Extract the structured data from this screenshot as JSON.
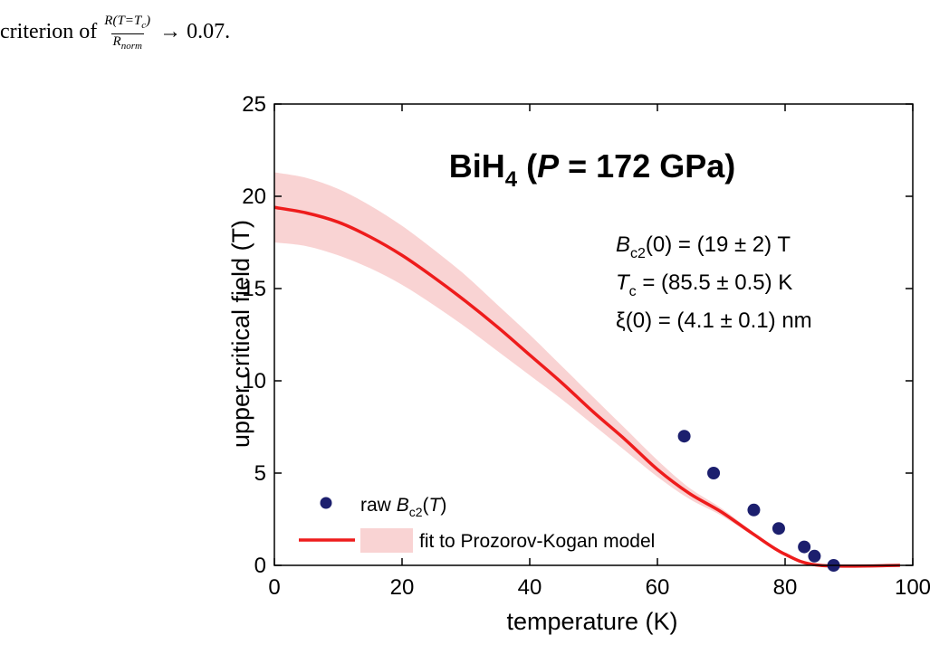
{
  "caption": {
    "prefix": "criterion of",
    "numerator": "R(T=T",
    "numerator_sub": "c",
    "numerator_end": ")",
    "denominator": "R",
    "denominator_sub": "norm",
    "suffix": "→ 0.07."
  },
  "chart_data": {
    "type": "scatter",
    "title": "BiH4 (P = 172 GPa)",
    "xlabel": "temperature (K)",
    "ylabel": "upper critical field (T)",
    "xlim": [
      0,
      100
    ],
    "ylim": [
      0,
      25
    ],
    "x_ticks": [
      0,
      20,
      40,
      60,
      80,
      100
    ],
    "y_ticks": [
      0,
      5,
      10,
      15,
      20,
      25
    ],
    "grid": false,
    "legend_position": "bottom-left",
    "annotations": [
      {
        "main": "B",
        "sub": "c2",
        "rest": "(0) = (19 ± 2) T"
      },
      {
        "main": "T",
        "sub": "c",
        "rest": " = (85.5 ± 0.5) K"
      },
      {
        "main": "ξ(0) = (4.1 ± 0.1) nm",
        "sub": "",
        "rest": ""
      }
    ],
    "series": [
      {
        "name": "raw Bc2(T)",
        "kind": "scatter",
        "color": "#1c1f6e",
        "x": [
          64.2,
          68.8,
          75.1,
          79.0,
          83.0,
          84.6,
          87.6
        ],
        "y": [
          7.0,
          5.0,
          3.0,
          2.0,
          1.0,
          0.5,
          0.0
        ]
      },
      {
        "name": "fit to Prozorov-Kogan model",
        "kind": "line",
        "color": "#ee1c1c",
        "band_color": "#f9d3d3",
        "x": [
          0,
          5,
          10,
          15,
          20,
          25,
          30,
          35,
          40,
          45,
          50,
          55,
          60,
          65,
          70,
          75,
          80,
          85.5,
          98
        ],
        "y": [
          19.4,
          19.1,
          18.6,
          17.8,
          16.8,
          15.6,
          14.3,
          12.9,
          11.4,
          9.9,
          8.3,
          6.8,
          5.2,
          3.9,
          2.9,
          1.7,
          0.6,
          0.0,
          0.0
        ],
        "band_upper": [
          21.3,
          21.0,
          20.4,
          19.5,
          18.4,
          17.1,
          15.7,
          14.1,
          12.5,
          10.8,
          9.1,
          7.4,
          5.7,
          4.2,
          3.1,
          1.8,
          0.6,
          0.0,
          0.0
        ],
        "band_lower": [
          17.5,
          17.3,
          16.8,
          16.1,
          15.2,
          14.1,
          12.9,
          11.6,
          10.3,
          9.0,
          7.6,
          6.2,
          4.8,
          3.6,
          2.7,
          1.6,
          0.6,
          0.0,
          0.0
        ]
      }
    ]
  }
}
